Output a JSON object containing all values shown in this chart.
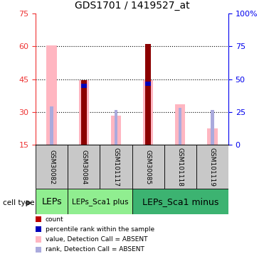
{
  "title": "GDS1701 / 1419527_at",
  "samples": [
    "GSM30082",
    "GSM30084",
    "GSM101117",
    "GSM30085",
    "GSM101118",
    "GSM101119"
  ],
  "cell_types": [
    {
      "label": "LEPs",
      "span": [
        0,
        1
      ],
      "color": "#90EE90"
    },
    {
      "label": "LEPs_Sca1 plus",
      "span": [
        1,
        3
      ],
      "color": "#90EE90"
    },
    {
      "label": "LEPs_Sca1 minus",
      "span": [
        3,
        6
      ],
      "color": "#3CB371"
    }
  ],
  "dark_red_bars": [
    null,
    44.5,
    null,
    61.0,
    null,
    null
  ],
  "pink_bars": [
    60.5,
    44.5,
    28.5,
    44.5,
    33.5,
    22.5
  ],
  "blue_rank_bars": [
    null,
    42.5,
    null,
    43.5,
    null,
    null
  ],
  "light_blue_rank_bars": [
    32.5,
    null,
    31.0,
    null,
    32.0,
    31.0
  ],
  "ylim": [
    15,
    75
  ],
  "yticks_left": [
    15,
    30,
    45,
    60,
    75
  ],
  "ytick_right_labels": [
    "0",
    "25",
    "50",
    "75",
    "100%"
  ],
  "dark_red_color": "#8B0000",
  "pink_color": "#FFB6C1",
  "blue_color": "#0000BB",
  "light_blue_color": "#AAAADD",
  "legend_items": [
    {
      "color": "#BB0000",
      "label": "count"
    },
    {
      "color": "#0000BB",
      "label": "percentile rank within the sample"
    },
    {
      "color": "#FFB6C1",
      "label": "value, Detection Call = ABSENT"
    },
    {
      "color": "#AAAADD",
      "label": "rank, Detection Call = ABSENT"
    }
  ],
  "left_color": "#EE3333",
  "right_color": "#0000EE",
  "grid_dotted_at": [
    30,
    45,
    60
  ],
  "gsm_row_color": "#C8C8C8",
  "cell_type_colors": [
    "#90EE90",
    "#90EE90",
    "#3CB371"
  ],
  "cell_type_font_sizes": [
    9,
    7.5,
    9
  ]
}
